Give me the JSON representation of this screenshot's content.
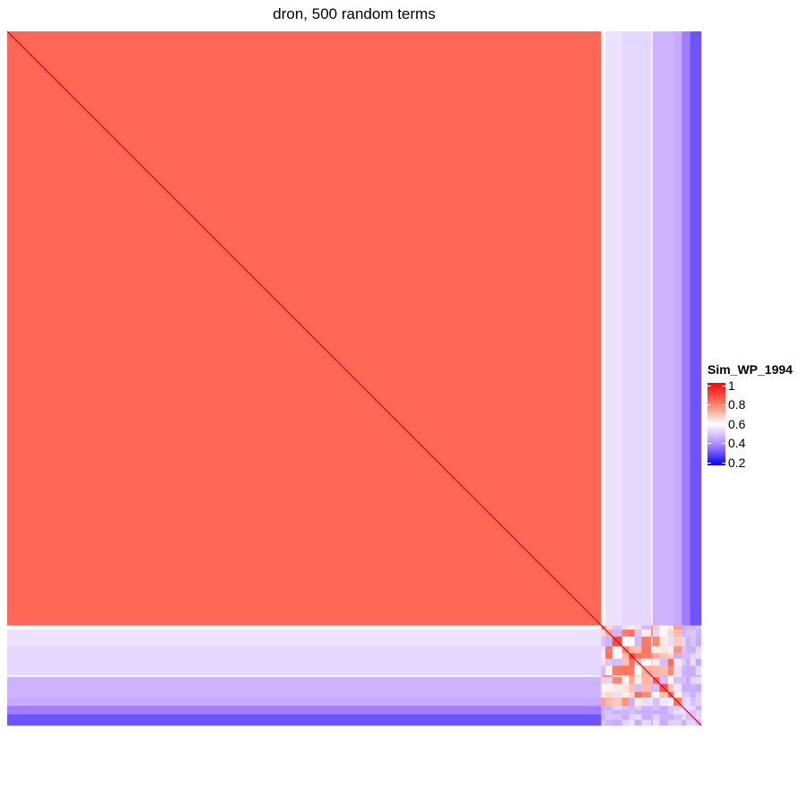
{
  "chart_data": {
    "type": "heatmap",
    "title": "dron, 500 random terms",
    "n_terms": 500,
    "legend": {
      "title": "Sim_WP_1994",
      "ticks": [
        "1",
        "0.8",
        "0.6",
        "0.4",
        "0.2"
      ],
      "tick_values": [
        1.0,
        0.8,
        0.6,
        0.4,
        0.2
      ],
      "range": [
        0.2,
        1.0
      ],
      "placement": "right"
    },
    "color_scale": [
      {
        "value": 1.0,
        "color": "#ff0000"
      },
      {
        "value": 0.8,
        "color": "#ff8a72"
      },
      {
        "value": 0.6,
        "color": "#ffffff"
      },
      {
        "value": 0.4,
        "color": "#b48cff"
      },
      {
        "value": 0.2,
        "color": "#0000ff"
      }
    ],
    "blocks": {
      "description_values": {
        "main_cluster_end_index": 428,
        "main_cluster_similarity": 0.85,
        "diagonal_similarity": 1.0
      },
      "side_bands": [
        {
          "start": 428,
          "end": 431,
          "value": 0.59
        },
        {
          "start": 431,
          "end": 443,
          "value": 0.55
        },
        {
          "start": 443,
          "end": 464,
          "value": 0.53
        },
        {
          "start": 464,
          "end": 465,
          "value": 0.59
        },
        {
          "start": 465,
          "end": 480,
          "value": 0.47
        },
        {
          "start": 480,
          "end": 486,
          "value": 0.45
        },
        {
          "start": 486,
          "end": 492,
          "value": 0.38
        },
        {
          "start": 492,
          "end": 500,
          "value": 0.32
        }
      ],
      "bottom_right_block": {
        "start": 428,
        "end": 500,
        "value_range": [
          0.45,
          1.0
        ]
      }
    }
  }
}
